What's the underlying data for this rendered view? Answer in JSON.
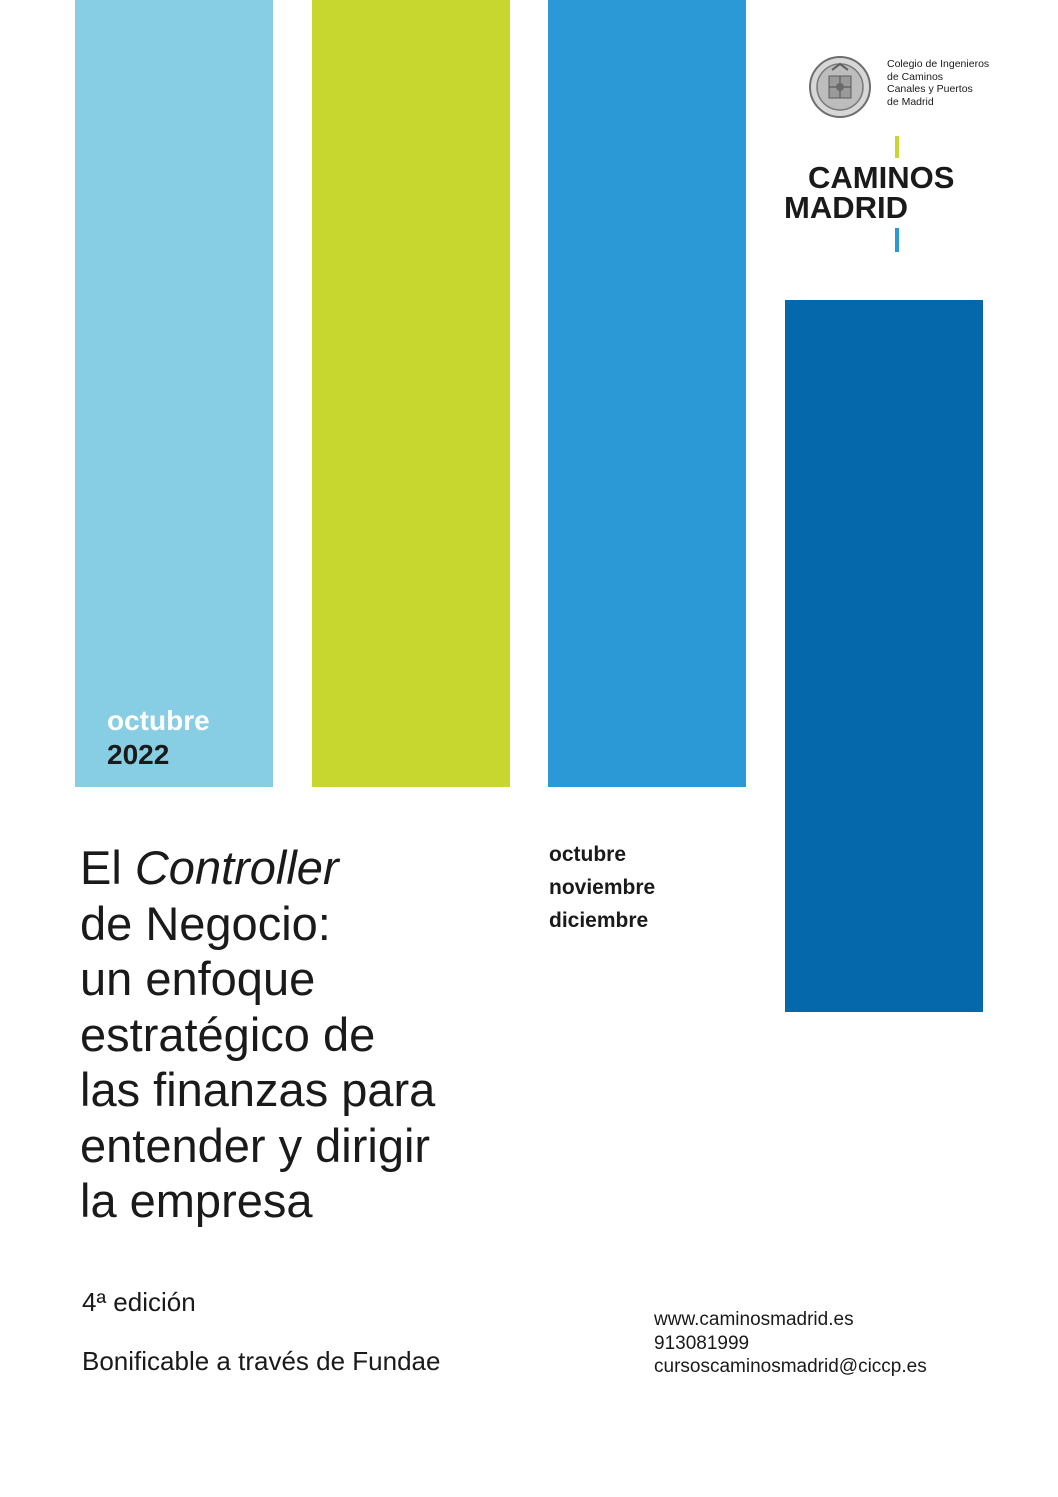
{
  "colors": {
    "bar_light_blue": "#87cde3",
    "bar_lime": "#c8d730",
    "bar_blue": "#2b99d6",
    "bar_dark_blue": "#0468aa",
    "text_dark": "#1a1a1a",
    "accent_lime": "#c8d730",
    "accent_blue": "#2b99d6"
  },
  "date": {
    "month": "octubre",
    "year": "2022"
  },
  "title": {
    "line1_prefix": "El ",
    "line1_italic": "Controller",
    "line2": "de Negocio:",
    "line3": "un enfoque",
    "line4": "estratégico de",
    "line5": "las finanzas para",
    "line6": "entender y dirigir",
    "line7": "la empresa"
  },
  "months": [
    "octubre",
    "noviembre",
    "diciembre"
  ],
  "edition": "4ª edición",
  "bonificable": "Bonificable a través de Fundae",
  "contact": {
    "website": "www.caminosmadrid.es",
    "phone": "913081999",
    "email": "cursoscaminosmadrid@ciccp.es"
  },
  "college": {
    "seal_icon": "college-seal-icon",
    "lines": [
      "Colegio de Ingenieros",
      "de Caminos",
      "Canales y Puertos",
      "de Madrid"
    ]
  },
  "brand": {
    "top_pre": "CAM",
    "top_mid": "I",
    "top_post": "NOS",
    "bottom_pre": "MADR",
    "bottom_mid": "I",
    "bottom_post": "D"
  }
}
